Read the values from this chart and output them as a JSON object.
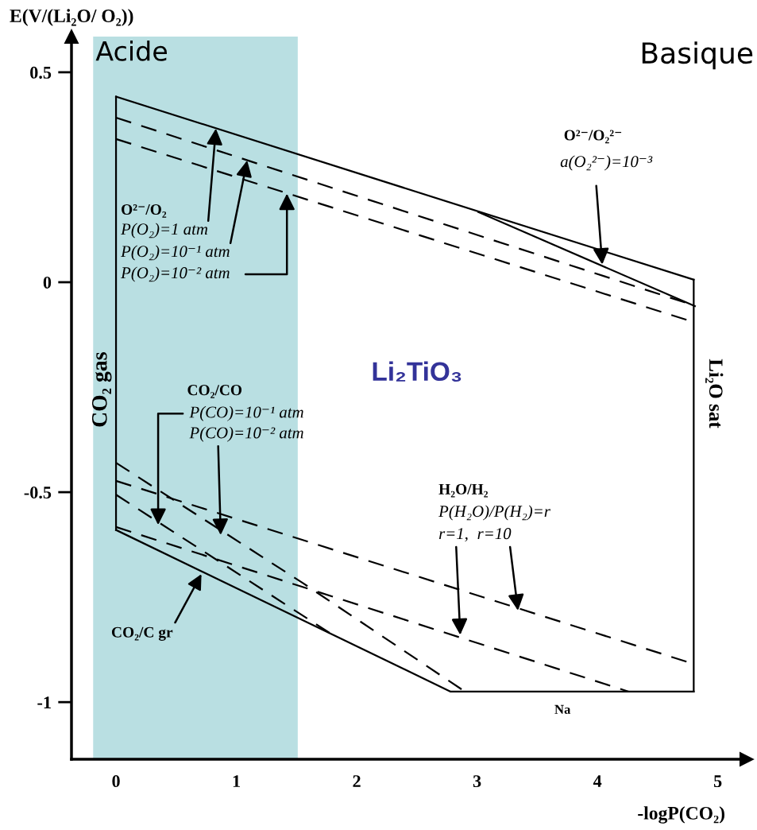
{
  "chart_data": {
    "type": "line",
    "xlabel": "-logP(CO₂)",
    "ylabel": "E(V/(Li₂O/ O₂))",
    "xlim": [
      -0.37,
      5.24
    ],
    "ylim": [
      -1.136,
      0.585
    ],
    "xticks": [
      0,
      1,
      2,
      3,
      4,
      5
    ],
    "yticks": [
      0.5,
      {
        "value": 0,
        "label": "0"
      },
      {
        "value": -0.5,
        "label": "-0.5"
      },
      {
        "value": -1,
        "label": "-1"
      }
    ],
    "grid": false,
    "marker": "none",
    "bands": [
      {
        "axis": "x",
        "from": -0.19,
        "to": 1.51,
        "label": "Acide",
        "color": "#b9dfe2"
      }
    ],
    "series": [
      {
        "color": "#000000",
        "line_style": "solid",
        "x": [
          0,
          4.8
        ],
        "values": [
          0.442,
          0.006
        ]
      },
      {
        "color": "#000000",
        "line_style": "solid",
        "x": [
          0,
          2.78,
          4.8
        ],
        "values": [
          -0.59,
          -0.975,
          -0.975
        ]
      },
      {
        "color": "#000000",
        "line_style": "solid",
        "x": [
          0,
          0
        ],
        "values": [
          0.442,
          -0.59
        ]
      },
      {
        "color": "#000000",
        "line_style": "solid",
        "x": [
          4.8,
          4.8
        ],
        "values": [
          0.006,
          -0.975
        ]
      },
      {
        "color": "#000000",
        "line_style": "dashed",
        "x": [
          0,
          4.8
        ],
        "values": [
          0.392,
          -0.055
        ]
      },
      {
        "color": "#000000",
        "line_style": "dashed",
        "x": [
          0,
          4.8
        ],
        "values": [
          0.341,
          -0.095
        ]
      },
      {
        "color": "#000000",
        "line_style": "solid",
        "x": [
          3.01,
          4.81
        ],
        "values": [
          0.167,
          -0.057
        ]
      },
      {
        "color": "#000000",
        "line_style": "dashed",
        "x": [
          0,
          1.55,
          2.9
        ],
        "values": [
          -0.43,
          -0.716,
          -0.975
        ]
      },
      {
        "color": "#000000",
        "line_style": "dashed",
        "x": [
          0,
          1.8
        ],
        "values": [
          -0.506,
          -0.84
        ]
      },
      {
        "color": "#000000",
        "line_style": "dashed",
        "x": [
          0,
          4.8
        ],
        "values": [
          -0.473,
          -0.909
        ]
      },
      {
        "color": "#000000",
        "line_style": "dashed",
        "x": [
          0,
          4.26
        ],
        "values": [
          -0.583,
          -0.975
        ]
      }
    ],
    "annotations": [
      "Basique",
      "O²⁻/O₂",
      {
        "text": "P(O₂)=1 atm",
        "x": 0.83,
        "y": 0.366
      },
      {
        "text": "P(O₂)=10⁻¹ atm",
        "x": 1.09,
        "y": 0.29
      },
      {
        "text": "P(O₂)=10⁻² atm",
        "x": 1.42,
        "y": 0.211
      },
      "O²⁻/O₂²⁻",
      {
        "text": "a(O₂²⁻)=10⁻³",
        "x": 4.04,
        "y": 0.042
      },
      "CO₂ gas",
      "Li₂TiO₃",
      "Li₂O sat",
      "CO₂/CO",
      {
        "text": "P(CO)=10⁻¹ atm",
        "x": 0.35,
        "y": -0.578
      },
      {
        "text": "P(CO)=10⁻² atm",
        "x": 0.87,
        "y": -0.602
      },
      "H₂O/H₂",
      "P(H₂O)/P(H₂)=r",
      {
        "text": "r=1,",
        "x": 2.86,
        "y": -0.84
      },
      {
        "text": "r=10",
        "x": 3.34,
        "y": -0.782
      },
      {
        "text": "CO₂/C gr",
        "x": 0.71,
        "y": -0.695
      },
      "Na"
    ]
  }
}
